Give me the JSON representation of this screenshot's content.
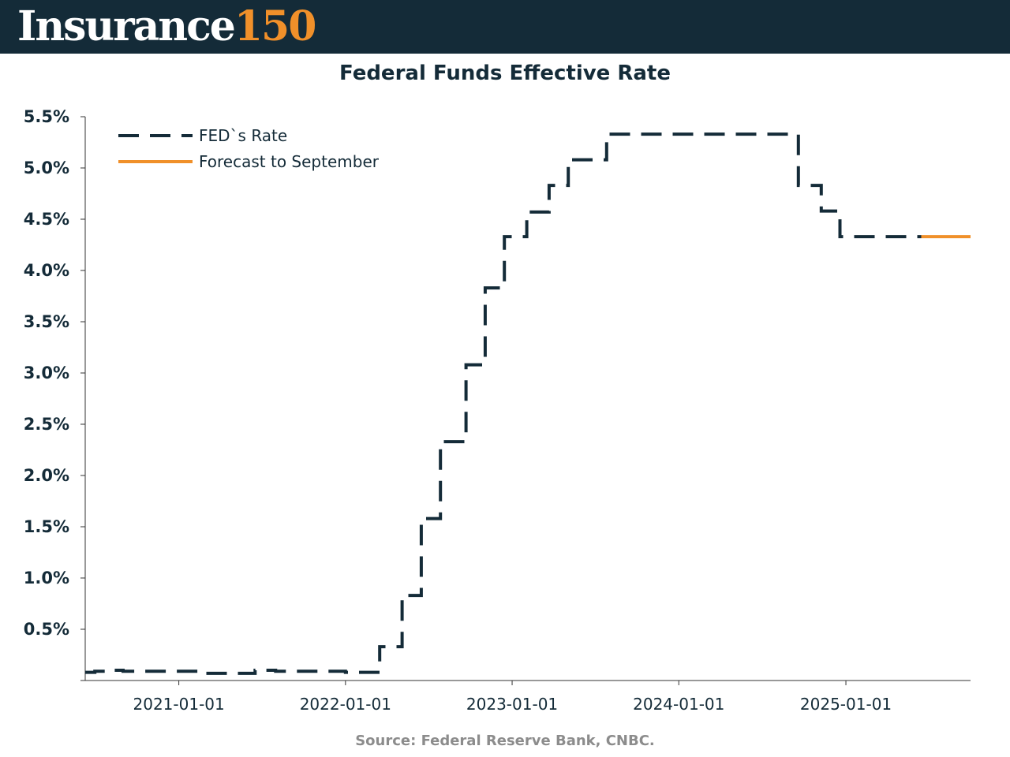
{
  "header": {
    "brand_word": "Insurance",
    "brand_number": "150",
    "brand_colors": {
      "background": "#142b38",
      "word": "#ffffff",
      "number": "#f0902a"
    }
  },
  "chart_data": {
    "type": "line",
    "title": "Federal Funds Effective Rate",
    "xlabel": "",
    "ylabel": "",
    "x_scale": "date",
    "xlim": [
      "2020-06-10",
      "2025-10-01"
    ],
    "ylim": [
      0,
      5.5
    ],
    "y_ticks": [
      {
        "value": 0.5,
        "label": "0.5%"
      },
      {
        "value": 1.0,
        "label": "1.0%"
      },
      {
        "value": 1.5,
        "label": "1.5%"
      },
      {
        "value": 2.0,
        "label": "2.0%"
      },
      {
        "value": 2.5,
        "label": "2.5%"
      },
      {
        "value": 3.0,
        "label": "3.0%"
      },
      {
        "value": 3.5,
        "label": "3.5%"
      },
      {
        "value": 4.0,
        "label": "4.0%"
      },
      {
        "value": 4.5,
        "label": "4.5%"
      },
      {
        "value": 5.0,
        "label": "5.0%"
      },
      {
        "value": 5.5,
        "label": "5.5%"
      }
    ],
    "x_ticks": [
      {
        "value": "2021-01-01",
        "label": "2021-01-01"
      },
      {
        "value": "2022-01-01",
        "label": "2022-01-01"
      },
      {
        "value": "2023-01-01",
        "label": "2023-01-01"
      },
      {
        "value": "2024-01-01",
        "label": "2024-01-01"
      },
      {
        "value": "2025-01-01",
        "label": "2025-01-01"
      }
    ],
    "grid": false,
    "legend_position": "top-left",
    "series": [
      {
        "name": "FED`s Rate",
        "style": "dashed",
        "color": "#142b38",
        "step": true,
        "points": [
          [
            "2020-06-10",
            0.08
          ],
          [
            "2020-07-01",
            0.09
          ],
          [
            "2020-08-01",
            0.1
          ],
          [
            "2020-09-01",
            0.09
          ],
          [
            "2021-01-01",
            0.09
          ],
          [
            "2021-03-01",
            0.07
          ],
          [
            "2021-06-17",
            0.1
          ],
          [
            "2021-08-01",
            0.09
          ],
          [
            "2022-01-01",
            0.08
          ],
          [
            "2022-03-17",
            0.33
          ],
          [
            "2022-05-05",
            0.83
          ],
          [
            "2022-06-16",
            1.58
          ],
          [
            "2022-07-28",
            2.33
          ],
          [
            "2022-09-22",
            3.08
          ],
          [
            "2022-11-03",
            3.83
          ],
          [
            "2022-12-15",
            4.33
          ],
          [
            "2023-02-02",
            4.57
          ],
          [
            "2023-03-23",
            4.83
          ],
          [
            "2023-05-04",
            5.08
          ],
          [
            "2023-07-27",
            5.33
          ],
          [
            "2024-09-19",
            4.83
          ],
          [
            "2024-11-08",
            4.58
          ],
          [
            "2024-12-19",
            4.33
          ],
          [
            "2025-06-15",
            4.33
          ]
        ]
      },
      {
        "name": "Forecast to September",
        "style": "solid",
        "color": "#f0902a",
        "step": true,
        "points": [
          [
            "2025-06-15",
            4.33
          ],
          [
            "2025-10-01",
            4.33
          ]
        ]
      }
    ]
  },
  "footer": {
    "source": "Source: Federal Reserve Bank, CNBC."
  }
}
